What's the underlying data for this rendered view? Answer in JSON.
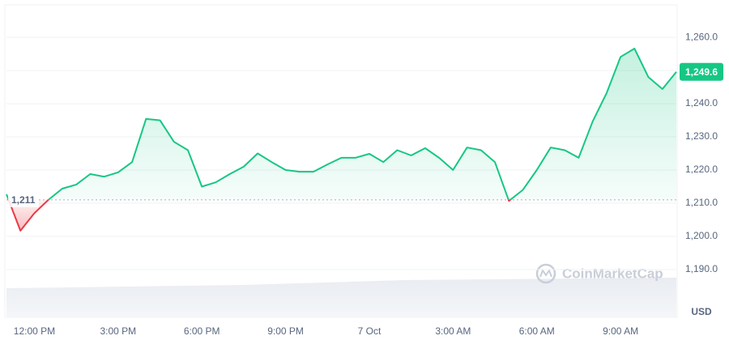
{
  "chart_data": {
    "type": "line",
    "categories": [
      null,
      null,
      "12:00 PM",
      null,
      null,
      null,
      null,
      null,
      "3:00 PM",
      null,
      null,
      null,
      null,
      null,
      "6:00 PM",
      null,
      null,
      null,
      null,
      null,
      "9:00 PM",
      null,
      null,
      null,
      null,
      null,
      "7 Oct",
      null,
      null,
      null,
      null,
      null,
      "3:00 AM",
      null,
      null,
      null,
      null,
      null,
      "6:00 AM",
      null,
      null,
      null,
      null,
      null,
      "9:00 AM",
      null,
      null,
      null,
      null
    ],
    "series": [
      {
        "name": null,
        "color": "#16c784",
        "values": [
          1212.7,
          1201.7,
          1207,
          1211,
          1214.4,
          1215.6,
          1218.8,
          1218,
          1219.3,
          1222.4,
          1235.4,
          1235,
          1228.5,
          1226,
          1215,
          1216.3,
          1218.8,
          1221,
          1225,
          1222.4,
          1220,
          1219.5,
          1219.5,
          1221.7,
          1223.7,
          1223.7,
          1224.9,
          1222.4,
          1226,
          1224.4,
          1226.6,
          1223.7,
          1220,
          1226.8,
          1226,
          1222.4,
          1210.7,
          1214,
          1220,
          1226.8,
          1226,
          1223.7,
          1234.6,
          1243.2,
          1254.1,
          1256.6,
          1248,
          1244.4,
          1249.6
        ]
      }
    ],
    "negative_color": "#ea3943",
    "baseline": {
      "value": 1211,
      "label": "1,211"
    },
    "current_price": {
      "value": 1249.6,
      "label": "1,249.6"
    },
    "ylim": [
      1175.6,
      1269.3
    ],
    "yticks": [
      {
        "value": 1190,
        "label": "1,190.0"
      },
      {
        "value": 1200,
        "label": "1,200.0"
      },
      {
        "value": 1210,
        "label": "1,210.0"
      },
      {
        "value": 1220,
        "label": "1,220.0"
      },
      {
        "value": 1230,
        "label": "1,230.0"
      },
      {
        "value": 1240,
        "label": "1,240.0"
      },
      {
        "value": 1250,
        "label": "1,250.0"
      },
      {
        "value": 1260,
        "label": "1,260.0"
      }
    ],
    "grid": true,
    "currency": "USD",
    "watermark": "CoinMarketCap"
  }
}
